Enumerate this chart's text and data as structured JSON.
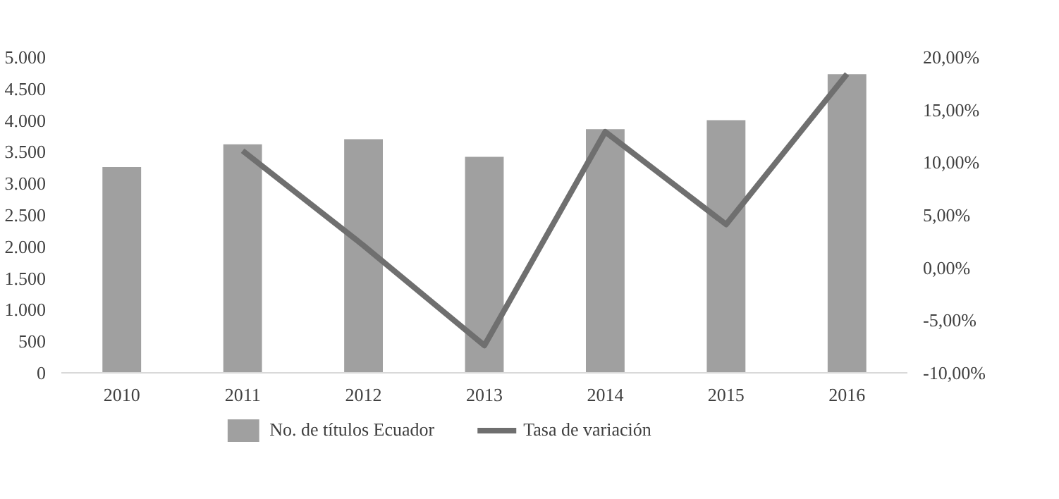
{
  "chart_data": {
    "type": "bar",
    "categories": [
      "2010",
      "2011",
      "2012",
      "2013",
      "2014",
      "2015",
      "2016"
    ],
    "series": [
      {
        "name": "No. de títulos Ecuador",
        "type": "bar",
        "color": "#a0a0a0",
        "values": [
          3260,
          3620,
          3700,
          3420,
          3860,
          4000,
          4730
        ]
      },
      {
        "name": "Tasa de variación",
        "type": "line",
        "axis": "y2",
        "color": "#6f6f6f",
        "values": [
          null,
          11.1,
          2.1,
          -7.4,
          12.9,
          4.1,
          18.4
        ]
      }
    ],
    "ylim": [
      0,
      5000
    ],
    "yticks": [
      0,
      500,
      {
        "value": 1000,
        "label": "1.000"
      },
      {
        "value": 1500,
        "label": "1.500"
      },
      {
        "value": 2000,
        "label": "2.000"
      },
      {
        "value": 2500,
        "label": "2.500"
      },
      {
        "value": 3000,
        "label": "3.000"
      },
      {
        "value": 3500,
        "label": "3.500"
      },
      {
        "value": 4000,
        "label": "4.000"
      },
      {
        "value": 4500,
        "label": "4.500"
      },
      {
        "value": 5000,
        "label": "5.000"
      }
    ],
    "y2lim": [
      -10,
      20
    ],
    "y2ticks": [
      {
        "value": -10,
        "label": "-10,00%"
      },
      {
        "value": -5,
        "label": "-5,00%"
      },
      {
        "value": 0,
        "label": "0,00%"
      },
      {
        "value": 5,
        "label": "5,00%"
      },
      {
        "value": 10,
        "label": "10,00%"
      },
      {
        "value": 15,
        "label": "15,00%"
      },
      {
        "value": 20,
        "label": "20,00%"
      }
    ],
    "grid": false,
    "legend": "bottom"
  }
}
